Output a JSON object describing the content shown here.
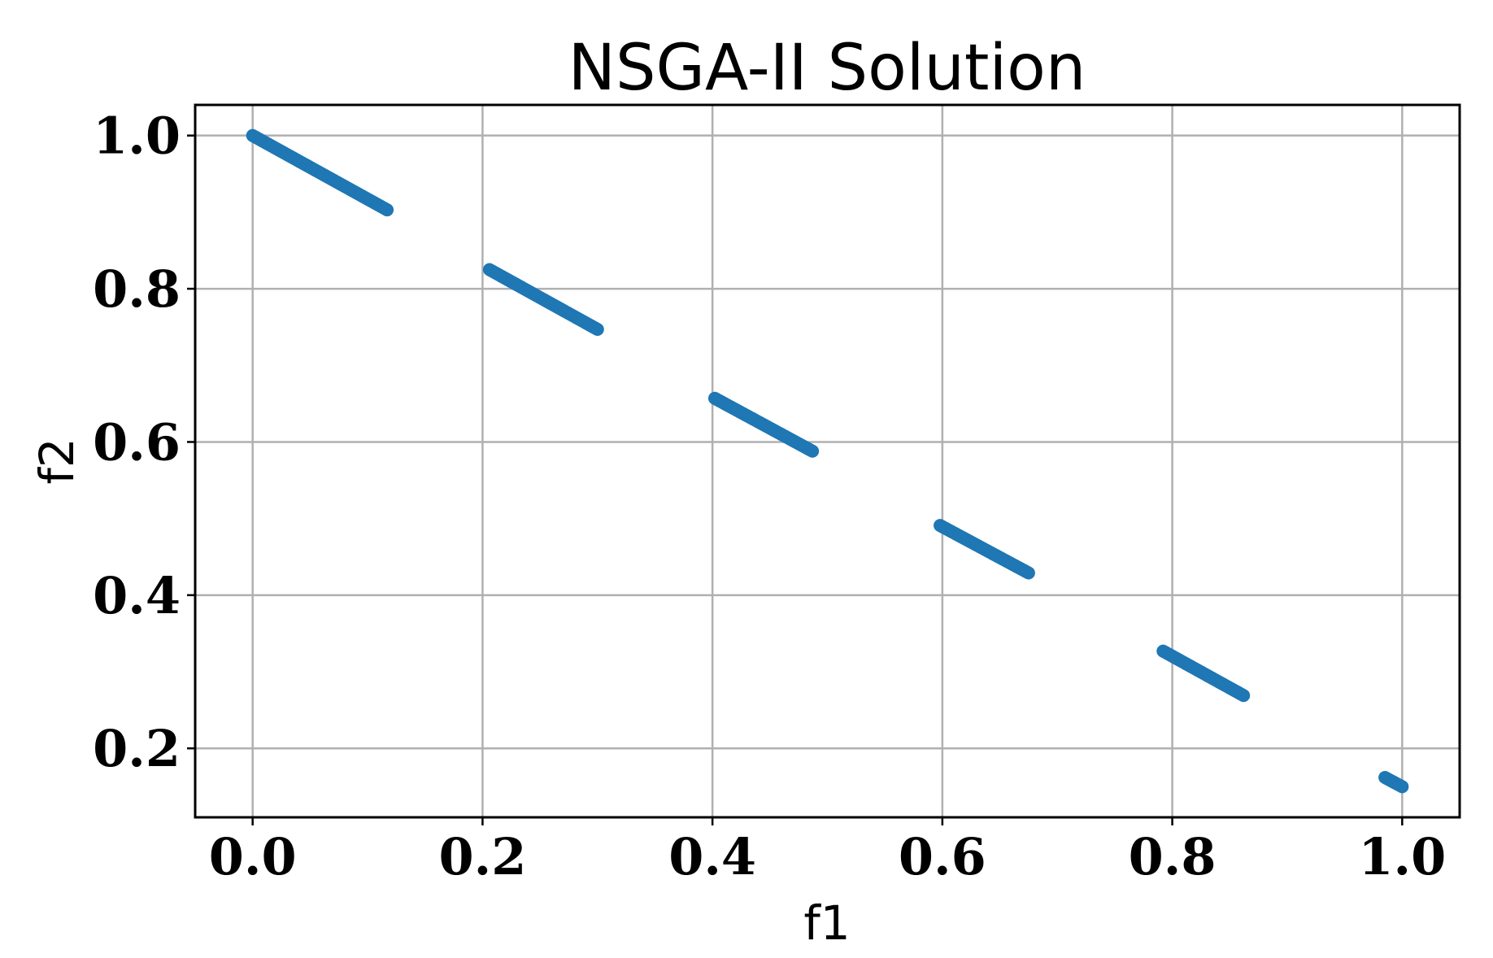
{
  "chart_data": {
    "type": "scatter",
    "title": "NSGA-II Solution",
    "xlabel": "f1",
    "ylabel": "f2",
    "xlim": [
      -0.05,
      1.05
    ],
    "ylim": [
      0.11,
      1.04
    ],
    "xticks": [
      0.0,
      0.2,
      0.4,
      0.6,
      0.8,
      1.0
    ],
    "xtick_labels": [
      "0.0",
      "0.2",
      "0.4",
      "0.6",
      "0.8",
      "1.0"
    ],
    "yticks": [
      0.2,
      0.4,
      0.6,
      0.8,
      1.0
    ],
    "ytick_labels": [
      "0.2",
      "0.4",
      "0.6",
      "0.8",
      "1.0"
    ],
    "grid": true,
    "marker_color": "#1f77b4",
    "series": [
      {
        "segments": [
          {
            "x": [
              0.0,
              0.117
            ],
            "y": [
              1.0,
              0.903
            ]
          },
          {
            "x": [
              0.206,
              0.3
            ],
            "y": [
              0.825,
              0.747
            ]
          },
          {
            "x": [
              0.402,
              0.487
            ],
            "y": [
              0.657,
              0.588
            ]
          },
          {
            "x": [
              0.598,
              0.675
            ],
            "y": [
              0.491,
              0.429
            ]
          },
          {
            "x": [
              0.792,
              0.862
            ],
            "y": [
              0.327,
              0.269
            ]
          },
          {
            "x": [
              0.985,
              1.0
            ],
            "y": [
              0.162,
              0.15
            ]
          }
        ]
      }
    ]
  }
}
